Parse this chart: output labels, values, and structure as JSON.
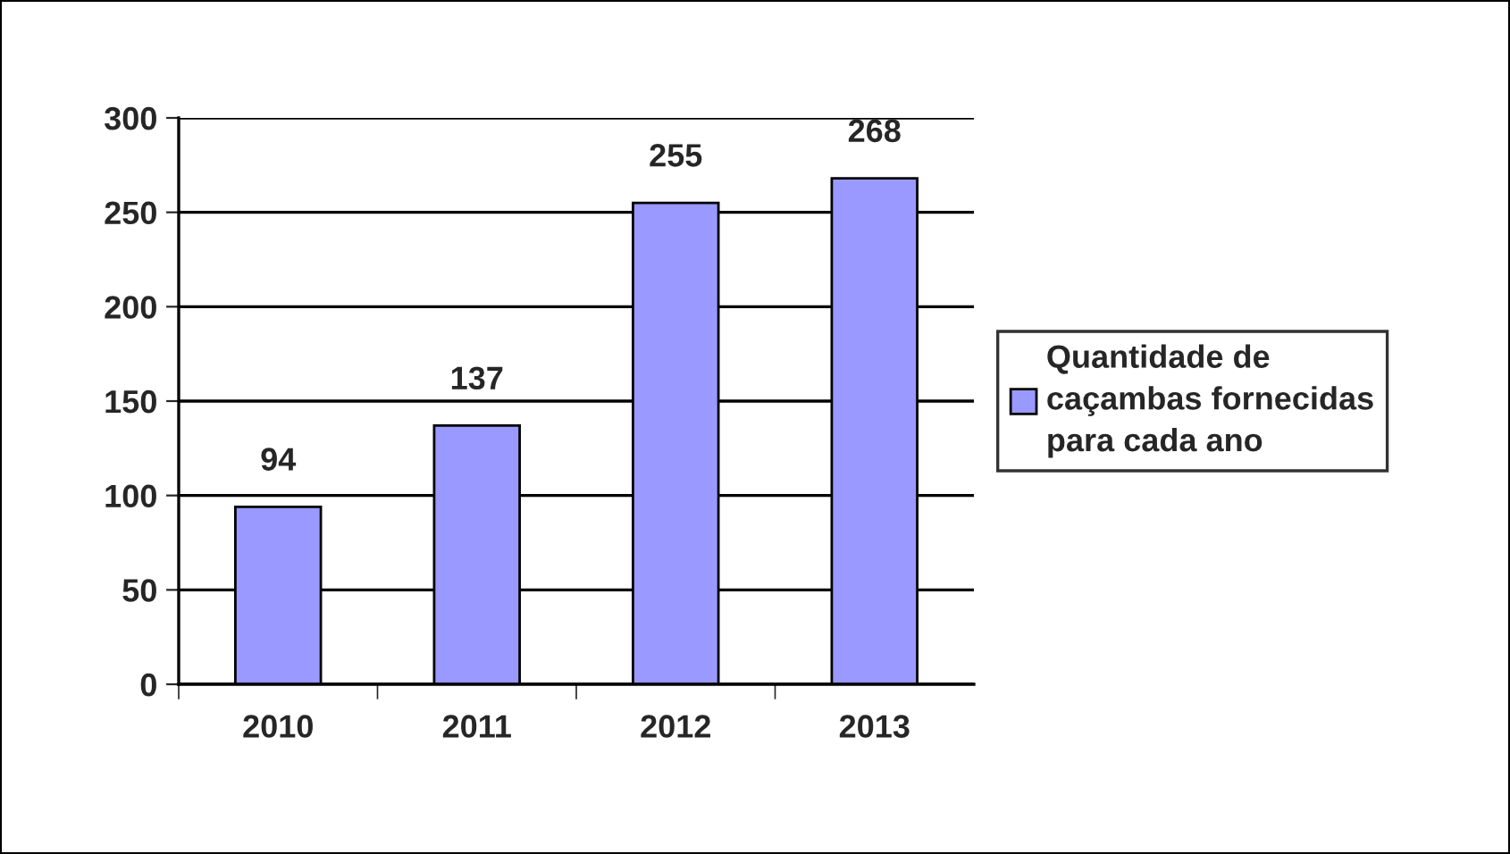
{
  "chart_data": {
    "type": "bar",
    "categories": [
      "2010",
      "2011",
      "2012",
      "2013"
    ],
    "series": [
      {
        "name": "Quantidade de caçambas fornecidas para cada ano",
        "color": "#9999ff",
        "values": [
          94,
          137,
          255,
          268
        ]
      }
    ],
    "data_labels": true,
    "ylim": [
      0,
      300
    ],
    "yticks": [
      0,
      50,
      100,
      150,
      200,
      250,
      300
    ],
    "grid": "y",
    "legend": "right"
  }
}
